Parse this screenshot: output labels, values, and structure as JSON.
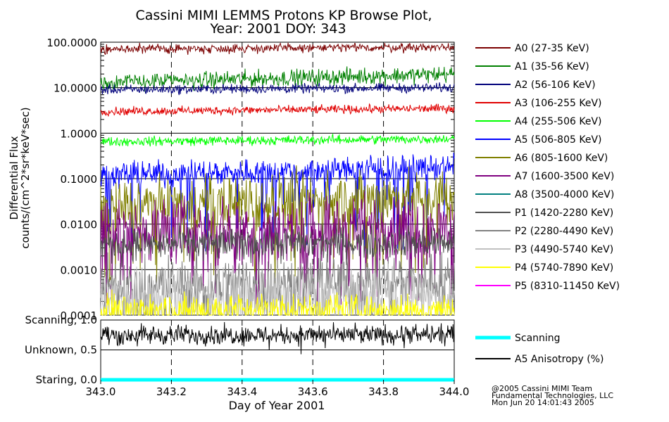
{
  "chart_data": [
    {
      "type": "line",
      "title": "Cassini MIMI LEMMS Protons KP Browse Plot,",
      "subtitle": "Year: 2001 DOY: 343",
      "xlabel": "Day of Year 2001",
      "ylabel": [
        "Differential Flux",
        "counts/(cm^2*sr*keV*sec)"
      ],
      "xlim": [
        343.0,
        344.0
      ],
      "ylim": [
        0.0001,
        100.0
      ],
      "yscale": "log",
      "grid": "dashed vertical and solid horizontal",
      "legend_position": "right",
      "x_ticks": [
        343.0,
        343.2,
        343.4,
        343.6,
        343.8,
        344.0
      ],
      "x_tick_labels": [
        "343.0",
        "343.2",
        "343.4",
        "343.6",
        "343.8",
        "344.0"
      ],
      "y_ticks": [
        100.0,
        10.0,
        1.0,
        0.1,
        0.01,
        0.001,
        0.0001
      ],
      "y_tick_labels": [
        "100.0000",
        "10.0000",
        "1.0000",
        "0.1000",
        "0.0100",
        "0.0010",
        "0.0001"
      ],
      "series": [
        {
          "name": "A0 (27-35 KeV)",
          "color": "#7b0000",
          "level_start": 70,
          "level_end": 78,
          "noise": 0.05,
          "dropout": 0
        },
        {
          "name": "A1 (35-56 KeV)",
          "color": "#008000",
          "level_start": 13,
          "level_end": 20,
          "noise": 0.09,
          "dropout": 0
        },
        {
          "name": "A2 (56-106 KeV)",
          "color": "#00007b",
          "level_start": 9,
          "level_end": 10,
          "noise": 0.05,
          "dropout": 0
        },
        {
          "name": "A3 (106-255 KeV)",
          "color": "#e00000",
          "level_start": 3.0,
          "level_end": 3.5,
          "noise": 0.045,
          "dropout": 0
        },
        {
          "name": "A4 (255-506 KeV)",
          "color": "#00ff00",
          "level_start": 0.65,
          "level_end": 0.75,
          "noise": 0.05,
          "dropout": 0
        },
        {
          "name": "A5 (506-805 KeV)",
          "color": "#0000ff",
          "level_start": 0.12,
          "level_end": 0.18,
          "noise": 0.14,
          "dropout": 0.06
        },
        {
          "name": "A6 (805-1600 KeV)",
          "color": "#808000",
          "level_start": 0.025,
          "level_end": 0.04,
          "noise": 0.3,
          "dropout": 0.08
        },
        {
          "name": "A7 (1600-3500 KeV)",
          "color": "#800080",
          "level_start": 0.007,
          "level_end": 0.009,
          "noise": 0.35,
          "dropout": 0.1
        },
        {
          "name": "A8 (3500-4000 KeV)",
          "color": "#008080",
          "level_start": 0,
          "level_end": 0,
          "noise": 0,
          "dropout": 0
        },
        {
          "name": "P1 (1420-2280 KeV)",
          "color": "#505050",
          "level_start": 0.0035,
          "level_end": 0.004,
          "noise": 0.18,
          "dropout": 0
        },
        {
          "name": "P2 (2280-4490 KeV)",
          "color": "#808080",
          "level_start": 0.00045,
          "level_end": 0.0006,
          "noise": 0.3,
          "dropout": 0.1
        },
        {
          "name": "P3 (4490-5740 KeV)",
          "color": "#c0c0c0",
          "level_start": 0.0003,
          "level_end": 0.0003,
          "noise": 0.3,
          "dropout": 0.1
        },
        {
          "name": "P4 (5740-7890 KeV)",
          "color": "#ffff00",
          "level_start": 0.00015,
          "level_end": 0.00015,
          "noise": 0.15,
          "dropout": 0.25
        },
        {
          "name": "P5 (8310-11450 KeV)",
          "color": "#ff00ff",
          "level_start": 0,
          "level_end": 0,
          "noise": 0,
          "dropout": 0
        }
      ]
    },
    {
      "type": "line",
      "xlim": [
        343.0,
        344.0
      ],
      "ylim": [
        0.0,
        1.0
      ],
      "grid": "dashed vertical and solid horizontal",
      "legend_position": "right",
      "y_ticks": [
        1.0,
        0.5,
        0.0
      ],
      "y_tick_labels": [
        "Scanning, 1.0",
        "Unknown, 0.5",
        "Staring, 0.0"
      ],
      "series": [
        {
          "name": "Scanning",
          "color": "#00ffff",
          "constant": 0.0
        },
        {
          "name": "A5 Anisotropy (%)",
          "color": "#000000",
          "level_start": 0.75,
          "level_end": 0.75,
          "spread": 0.08
        }
      ]
    }
  ],
  "footer": {
    "line1": "@2005 Cassini MIMI Team",
    "line2": "Fundamental Technologies, LLC",
    "line3": "Mon Jun 20 14:01:43 2005"
  }
}
